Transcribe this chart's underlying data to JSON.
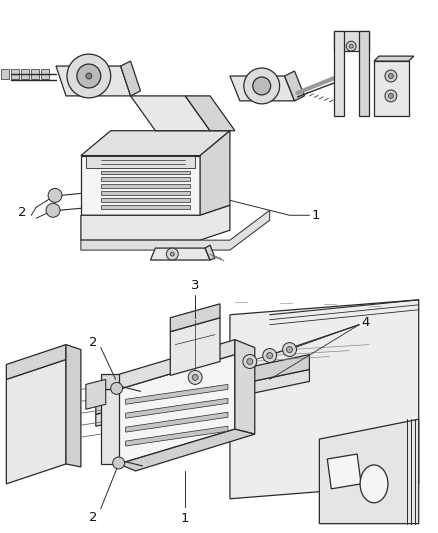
{
  "background_color": "#ffffff",
  "fig_width": 4.38,
  "fig_height": 5.33,
  "dpi": 100,
  "line_color": "#2a2a2a",
  "label_color": "#111111",
  "label_fontsize": 9.5,
  "screw_color": "#555555",
  "box_face": "#f2f2f2",
  "box_shade": "#d5d5d5",
  "box_dark": "#c0c0c0"
}
